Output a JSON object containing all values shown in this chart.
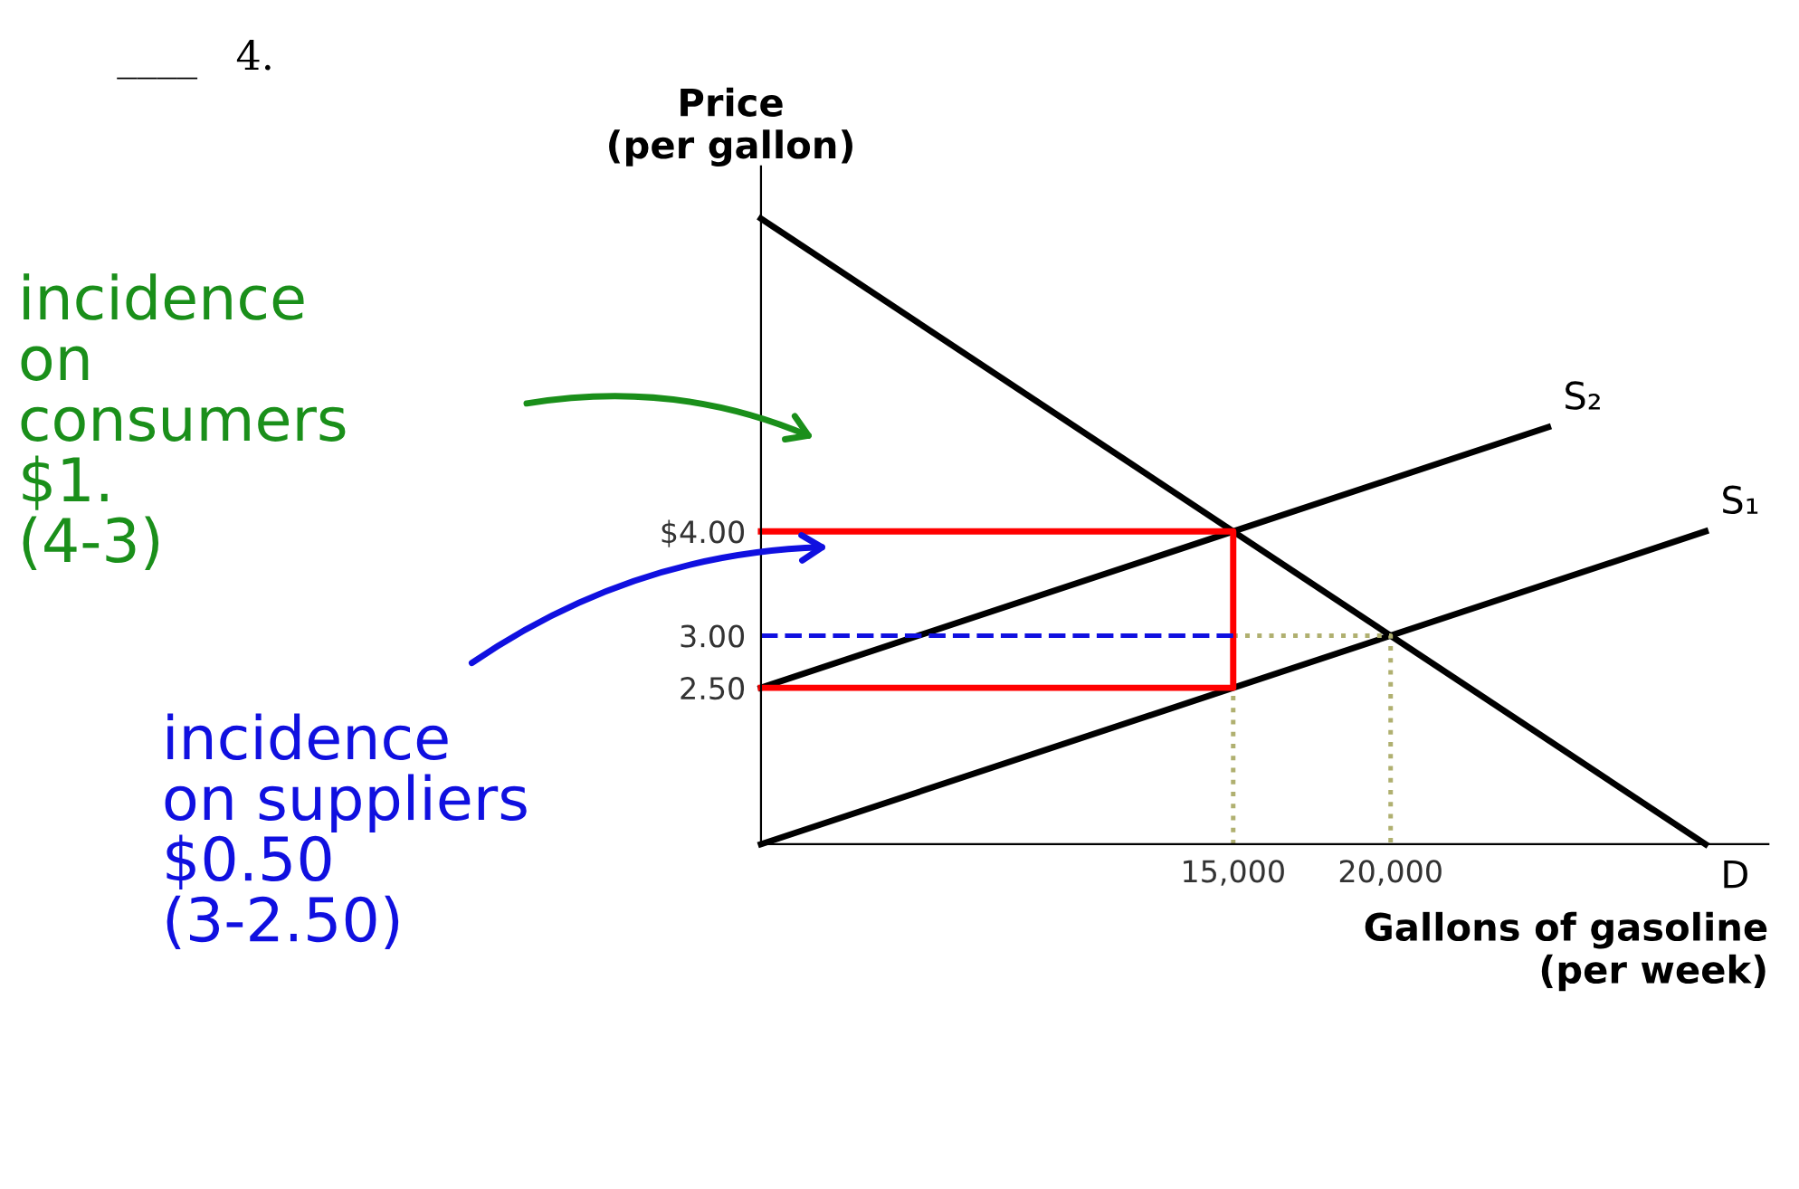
{
  "chart_data": {
    "type": "line",
    "title": "____   4.",
    "ylabel": "Price\n(per gallon)",
    "xlabel": "Gallons of gasoline\n(per week)",
    "xlim": [
      0,
      32000
    ],
    "ylim": [
      1,
      7.5
    ],
    "xticks": [
      {
        "value": 15000,
        "label": "15,000"
      },
      {
        "value": 20000,
        "label": "20,000"
      }
    ],
    "yticks": [
      {
        "value": 2.5,
        "label": "2.50"
      },
      {
        "value": 3,
        "label": "3.00"
      },
      {
        "value": 4,
        "label": "$4.00"
      }
    ],
    "grid": false,
    "legend": false,
    "marker": "none",
    "series": [
      {
        "name": "S₂",
        "color": "#000000",
        "x": [
          0,
          25000
        ],
        "values": [
          2.5,
          5.0
        ]
      },
      {
        "name": "S₁",
        "color": "#000000",
        "x": [
          0,
          30000
        ],
        "values": [
          1.0,
          4.0
        ]
      },
      {
        "name": "D",
        "color": "#000000",
        "x": [
          0,
          30000
        ],
        "values": [
          7.0,
          1.0
        ]
      },
      {
        "color": "#b0b070",
        "line_style": "dotted",
        "x": [
          15000,
          20000,
          20000
        ],
        "values": [
          3,
          3,
          1
        ]
      },
      {
        "color": "#b0b070",
        "line_style": "dotted",
        "x": [
          15000,
          15000
        ],
        "values": [
          1,
          2.5
        ]
      },
      {
        "color": "#ff0000",
        "x": [
          0,
          15000,
          15000,
          0
        ],
        "values": [
          4,
          4,
          2.5,
          2.5
        ]
      },
      {
        "color": "#1010e0",
        "line_style": "dashed",
        "x": [
          0,
          15000
        ],
        "values": [
          3,
          3
        ]
      }
    ],
    "annotations": [
      "incidence\non\nconsumers\n$1.\n(4-3)",
      "incidence\non suppliers\n$0.50\n(3-2.50)"
    ]
  }
}
